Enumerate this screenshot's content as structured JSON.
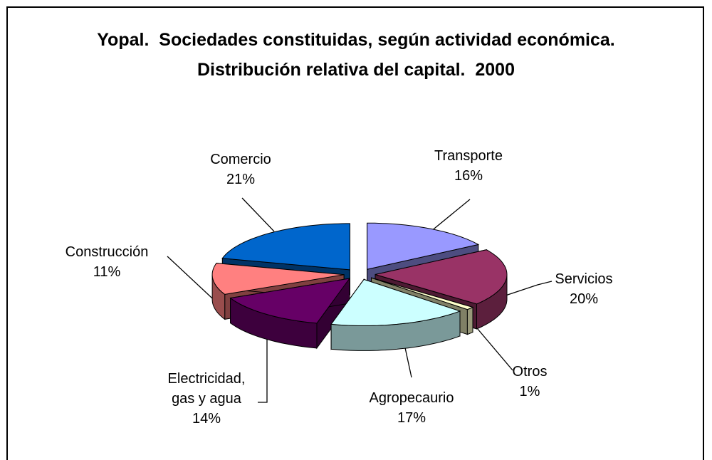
{
  "chart_data": {
    "type": "pie",
    "title": "Yopal.  Sociedades constituidas, según actividad económica.  Distribución relativa del capital.  2000",
    "categories": [
      "Transporte",
      "Servicios",
      "Otros",
      "Agropecaurio",
      "Electricidad, gas y agua",
      "Construcción",
      "Comercio"
    ],
    "values": [
      16,
      20,
      1,
      17,
      14,
      11,
      21
    ],
    "value_labels": [
      "16%",
      "20%",
      "1%",
      "17%",
      "14%",
      "11%",
      "21%"
    ],
    "colors": [
      "#9999ff",
      "#993366",
      "#ffffcc",
      "#ccffff",
      "#660066",
      "#ff8080",
      "#0066cc"
    ]
  }
}
